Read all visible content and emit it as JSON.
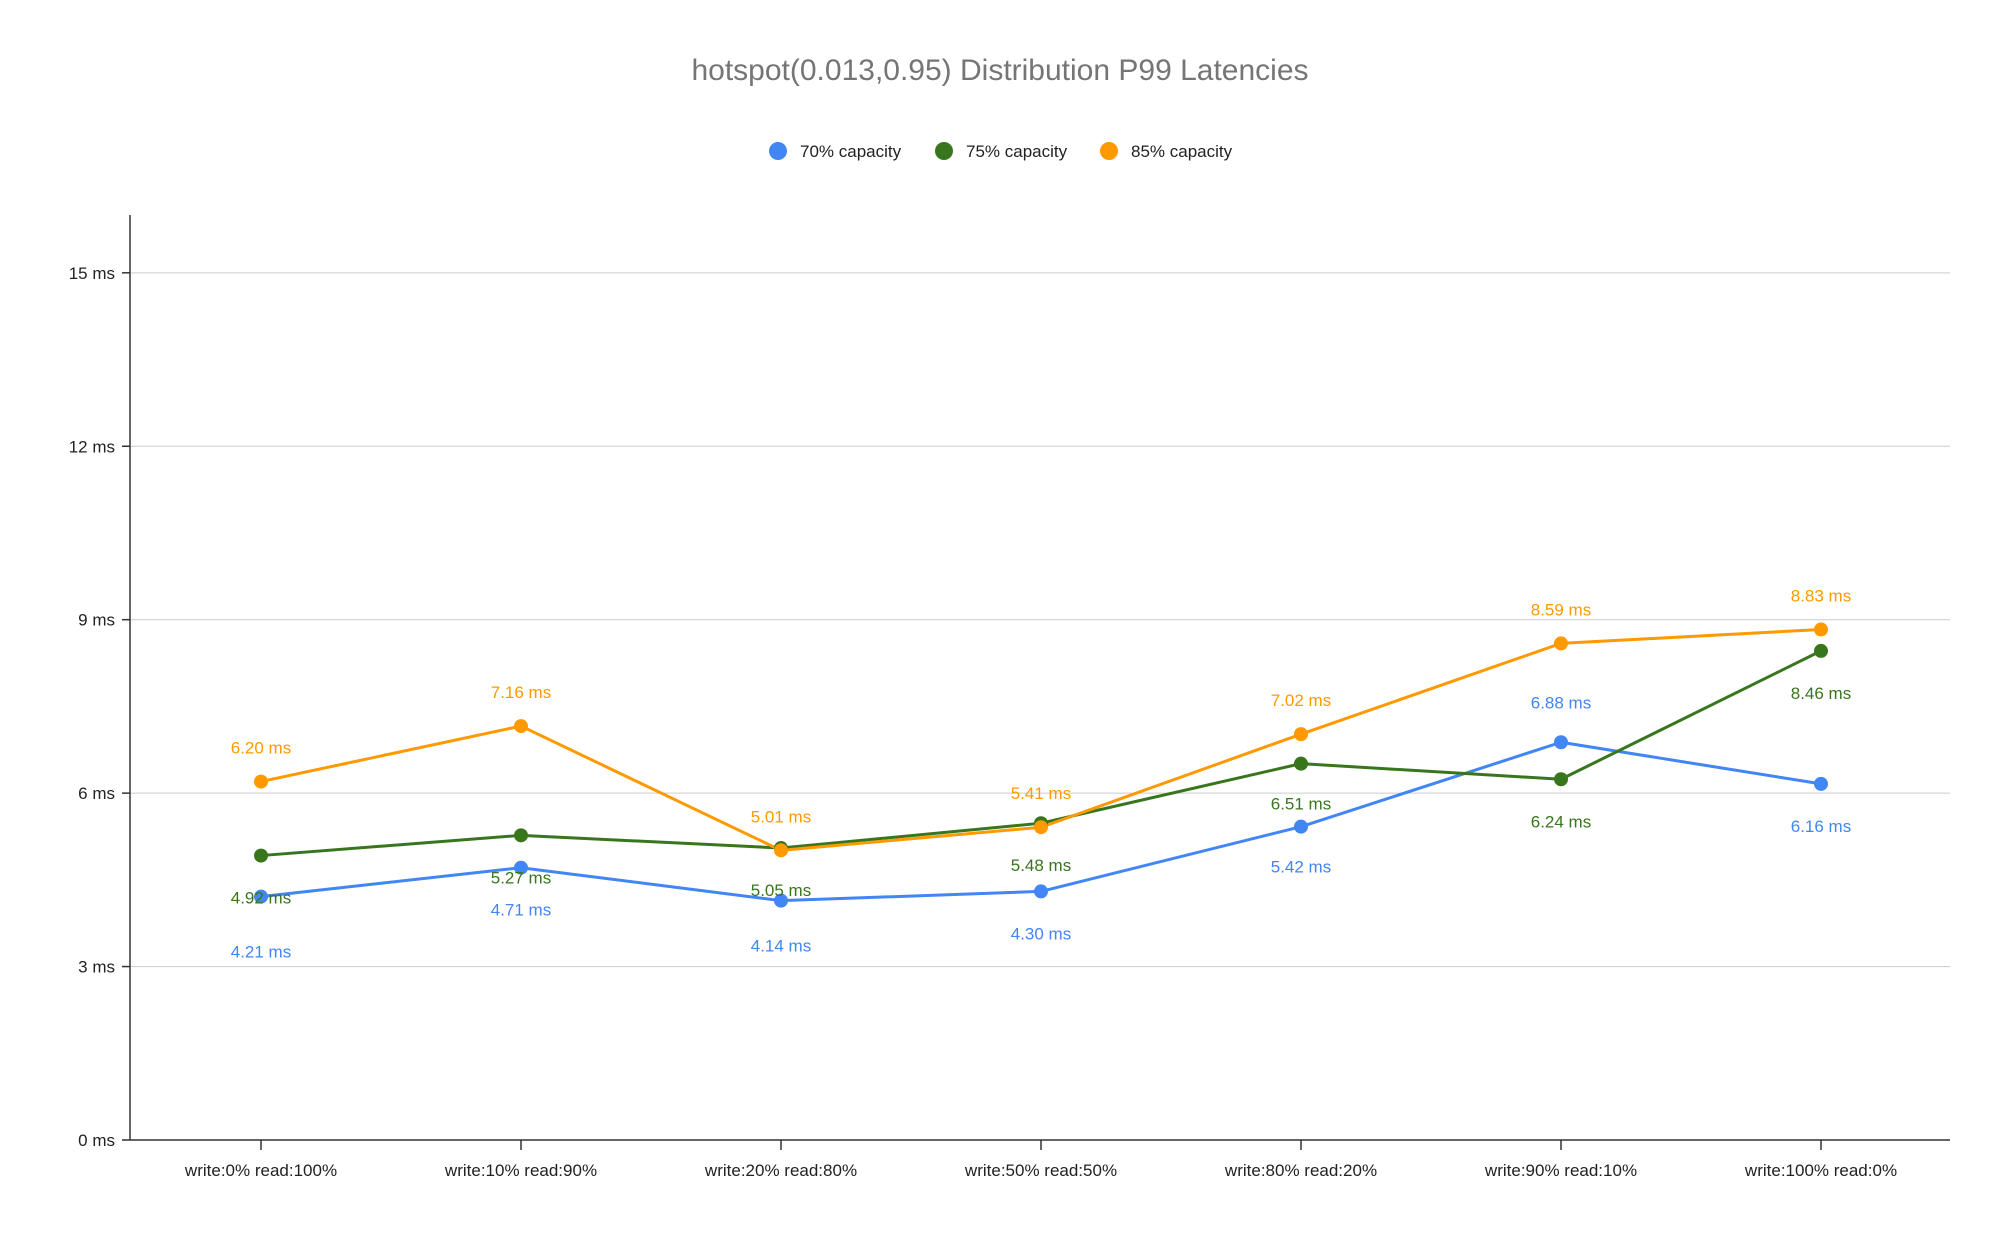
{
  "chart_data": {
    "type": "line",
    "title": "hotspot(0.013,0.95) Distribution P99 Latencies",
    "xlabel": "",
    "ylabel": "",
    "categories": [
      "write:0% read:100%",
      "write:10% read:90%",
      "write:20% read:80%",
      "write:50% read:50%",
      "write:80% read:20%",
      "write:90% read:10%",
      "write:100% read:0%"
    ],
    "ylim": [
      0,
      16
    ],
    "yticks": [
      0,
      3,
      6,
      9,
      12,
      15
    ],
    "ytick_labels": [
      "0 ms",
      "3 ms",
      "6 ms",
      "9 ms",
      "12 ms",
      "15 ms"
    ],
    "grid": true,
    "legend_position": "top",
    "series": [
      {
        "name": "70% capacity",
        "color": "#4285F4",
        "values": [
          4.21,
          4.71,
          4.14,
          4.3,
          5.42,
          6.88,
          6.16
        ],
        "labels": [
          "4.21 ms",
          "4.71 ms",
          "4.14 ms",
          "4.30 ms",
          "5.42 ms",
          "6.88 ms",
          "6.16 ms"
        ]
      },
      {
        "name": "75% capacity",
        "color": "#38761D",
        "values": [
          4.92,
          5.27,
          5.05,
          5.48,
          6.51,
          6.24,
          8.46
        ],
        "labels": [
          "4.92 ms",
          "5.27 ms",
          "5.05 ms",
          "5.48 ms",
          "6.51 ms",
          "6.24 ms",
          "8.46 ms"
        ]
      },
      {
        "name": "85% capacity",
        "color": "#FF9900",
        "values": [
          6.2,
          7.16,
          5.01,
          5.41,
          7.02,
          8.59,
          8.83
        ],
        "labels": [
          "6.20 ms",
          "7.16 ms",
          "5.01 ms",
          "5.41 ms",
          "7.02 ms",
          "8.59 ms",
          "8.83 ms"
        ]
      }
    ]
  }
}
